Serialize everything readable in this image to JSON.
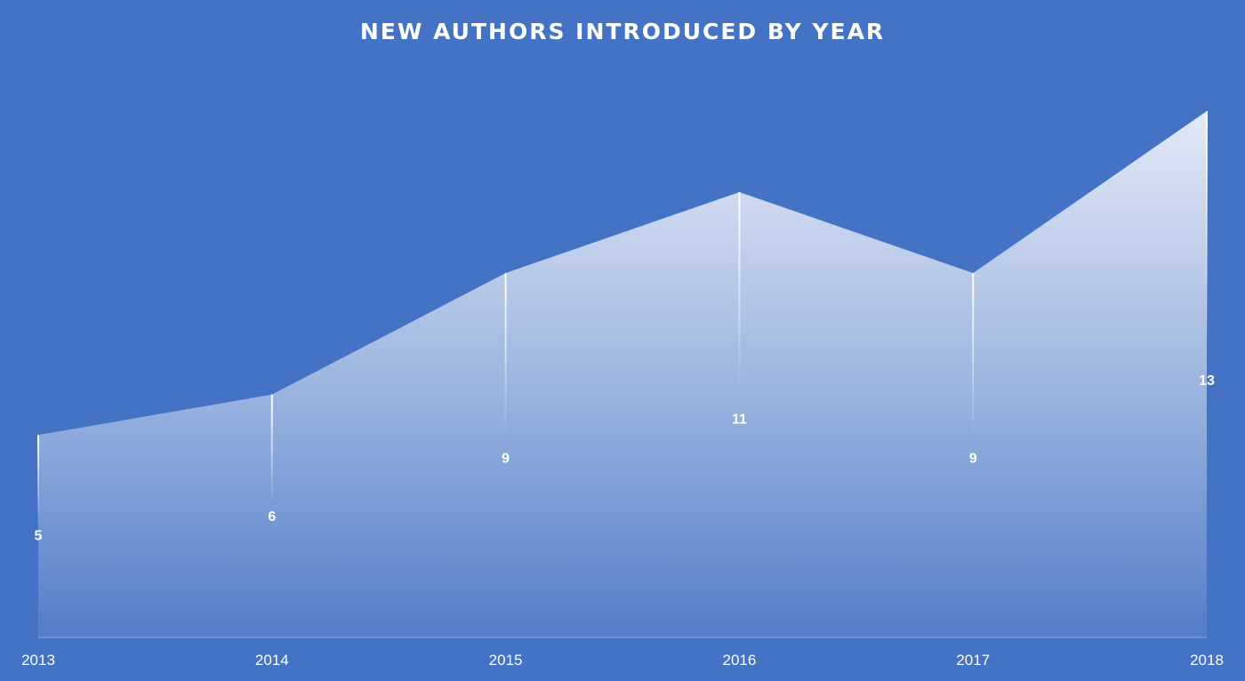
{
  "chart_data": {
    "type": "area",
    "title": "NEW AUTHORS INTRODUCED  BY YEAR",
    "xlabel": "",
    "ylabel": "",
    "categories": [
      "2013",
      "2014",
      "2015",
      "2016",
      "2017",
      "2018"
    ],
    "series": [
      {
        "values": [
          5,
          6,
          9,
          11,
          9,
          13
        ],
        "data_labels": [
          "5",
          "6",
          "9",
          "11",
          "9",
          "13"
        ]
      }
    ],
    "ylim": [
      0,
      13
    ],
    "grid": false,
    "legend": "none",
    "colors": {
      "background": "#4472c4",
      "area_top": "#ffffff",
      "axis": "#8faadc",
      "text": "#ffffff"
    }
  }
}
